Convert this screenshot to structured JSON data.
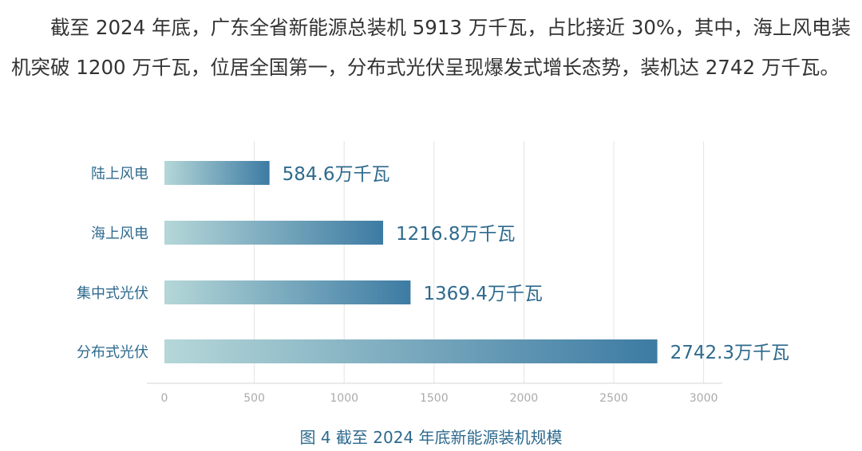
{
  "article": {
    "paragraph": "截至 2024 年底，广东全省新能源总装机 5913 万千瓦，占比接近 30%，其中，海上风电装机突破 1200 万千瓦，位居全国第一，分布式光伏呈现爆发式增长态势，装机达 2742 万千瓦。"
  },
  "chart_data": {
    "type": "bar",
    "orientation": "horizontal",
    "categories": [
      "陆上风电",
      "海上风电",
      "集中式光伏",
      "分布式光伏"
    ],
    "values": [
      584.6,
      1216.8,
      1369.4,
      2742.3
    ],
    "data_labels": [
      "584.6万千瓦",
      "1216.8万千瓦",
      "1369.4万千瓦",
      "2742.3万千瓦"
    ],
    "xticks": [
      0,
      500,
      1000,
      1500,
      2000,
      2500,
      3000
    ],
    "xlim": [
      0,
      3000
    ],
    "grid": true,
    "bar_gradient": [
      "#b5d7d8",
      "#3d7ba3"
    ],
    "label_color": "#2e6a8e",
    "tick_color": "#aaaaaa"
  },
  "caption": "图 4  截至 2024 年底新能源装机规模"
}
